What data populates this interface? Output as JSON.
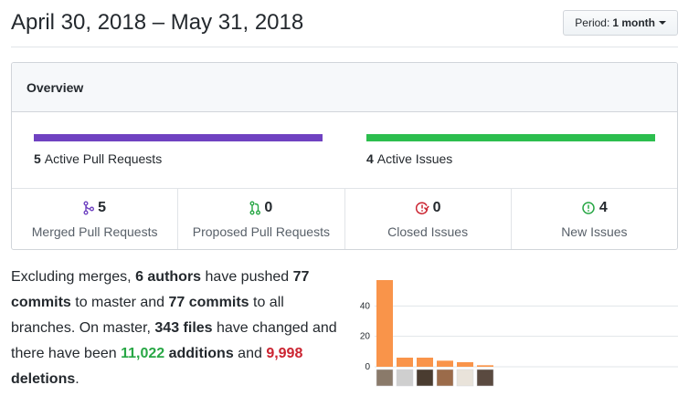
{
  "header": {
    "date_range": "April 30, 2018 – May 31, 2018",
    "period_label": "Period:",
    "period_value": "1 month"
  },
  "overview": {
    "title": "Overview",
    "pull_requests": {
      "count": "5",
      "label": "Active Pull Requests",
      "color": "#6f42c1"
    },
    "issues": {
      "count": "4",
      "label": "Active Issues",
      "color": "#2cbe4e"
    },
    "stats": [
      {
        "icon": "git-merge-icon",
        "value": "5",
        "label": "Merged Pull Requests",
        "color": "#6f42c1"
      },
      {
        "icon": "git-pull-request-icon",
        "value": "0",
        "label": "Proposed Pull Requests",
        "color": "#28a745"
      },
      {
        "icon": "issue-closed-icon",
        "value": "0",
        "label": "Closed Issues",
        "color": "#cb2431"
      },
      {
        "icon": "issue-opened-icon",
        "value": "4",
        "label": "New Issues",
        "color": "#28a745"
      }
    ]
  },
  "summary": {
    "p1": "Excluding merges, ",
    "authors": "6 authors",
    "p2": " have pushed ",
    "commits_master": "77 commits",
    "p3": " to master and ",
    "commits_all": "77 commits",
    "p4": " to all branches. On master, ",
    "files": "343 files",
    "p5": " have changed and there have been ",
    "additions_num": "11,022",
    "additions_word": " additions",
    "p6": " and ",
    "deletions_num": "9,998",
    "deletions_word": " deletions",
    "p7": "."
  },
  "chart_data": {
    "type": "bar",
    "categories": [
      "author-1",
      "author-2",
      "author-3",
      "author-4",
      "author-5",
      "author-6"
    ],
    "values": [
      57,
      6,
      6,
      4,
      3,
      1
    ],
    "yticks": [
      0,
      20,
      40
    ],
    "ylim": [
      0,
      60
    ],
    "bar_color": "#f9944a",
    "grid": true
  }
}
